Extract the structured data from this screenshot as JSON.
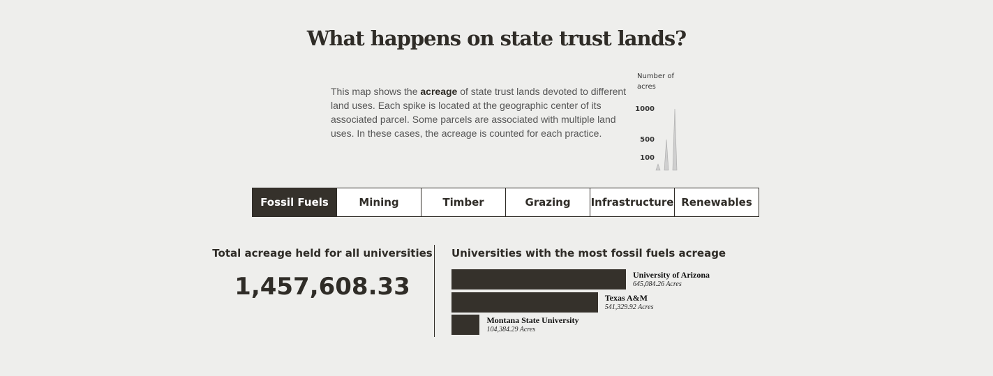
{
  "header": {
    "title": "What happens on state trust lands?"
  },
  "description": {
    "parts": [
      "This map shows the ",
      "acreage",
      " of state trust lands devoted to different land uses. Each spike is located at the geographic center of its associated parcel. Some parcels are associated with multiple land uses. In these cases, the acreage is counted for each practice."
    ]
  },
  "legend": {
    "label": "Number of acres",
    "ticks": [
      1000,
      500,
      100
    ]
  },
  "tabs": {
    "labels": [
      "Fossil Fuels",
      "Mining",
      "Timber",
      "Grazing",
      "Infrastructure",
      "Renewables"
    ],
    "active": 0
  },
  "total": {
    "label": "Total acreage held for all universities",
    "value": "1,457,608.33"
  },
  "chart_data": {
    "type": "bar",
    "title": "Universities with the most fossil fuels acreage",
    "categories": [
      "University of Arizona",
      "Texas A&M",
      "Montana State University"
    ],
    "values": [
      645084.26,
      541329.92,
      104384.29
    ],
    "value_labels": [
      "645,084.26 Acres",
      "541,329.92 Acres",
      "104,384.29 Acres"
    ],
    "color": "#35312b"
  }
}
